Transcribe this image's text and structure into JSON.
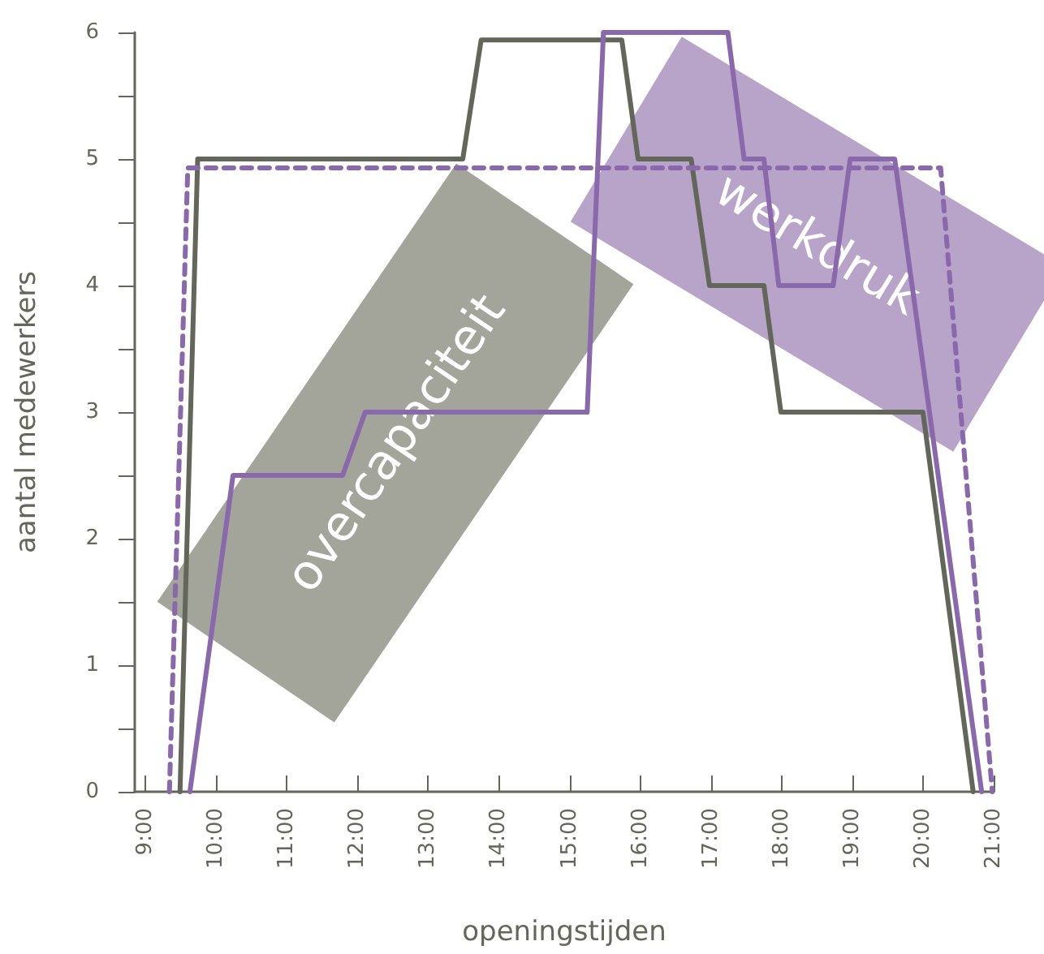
{
  "chart_data": {
    "type": "line",
    "xlabel": "openingstijden",
    "ylabel": "aantal medewerkers",
    "xlim": [
      8.85,
      21
    ],
    "ylim": [
      0,
      6
    ],
    "xticks": [
      {
        "value": 9,
        "label": "9:00"
      },
      {
        "value": 10,
        "label": "10:00"
      },
      {
        "value": 11,
        "label": "11:00"
      },
      {
        "value": 12,
        "label": "12:00"
      },
      {
        "value": 13,
        "label": "13:00"
      },
      {
        "value": 14,
        "label": "14:00"
      },
      {
        "value": 15,
        "label": "15:00"
      },
      {
        "value": 16,
        "label": "16:00"
      },
      {
        "value": 17,
        "label": "17:00"
      },
      {
        "value": 18,
        "label": "18:00"
      },
      {
        "value": 19,
        "label": "19:00"
      },
      {
        "value": 20,
        "label": "20:00"
      },
      {
        "value": 21,
        "label": "21:00"
      }
    ],
    "yticks": [
      0,
      {
        "value": 0.5,
        "label": null
      },
      1,
      {
        "value": 1.5,
        "label": null
      },
      2,
      {
        "value": 2.5,
        "label": null
      },
      3,
      {
        "value": 3.5,
        "label": null
      },
      4,
      {
        "value": 4.5,
        "label": null
      },
      5,
      {
        "value": 5.5,
        "label": null
      },
      6
    ],
    "grid": false,
    "marker": "none",
    "annotations": [
      "overcapaciteit",
      "werkdruk"
    ],
    "series": [
      {
        "color": "#63675a",
        "line_style": "solid",
        "x": [
          9.49,
          9.74,
          13.49,
          13.75,
          15.74,
          15.97,
          16.72,
          16.98,
          17.75,
          17.99,
          20.0,
          20.71
        ],
        "values": [
          0,
          5,
          5,
          5.94,
          5.94,
          5,
          5,
          4,
          4,
          3,
          3,
          0
        ]
      },
      {
        "color": "#8a68ac",
        "line_style": "solid",
        "x": [
          9.63,
          10.24,
          11.79,
          12.11,
          15.25,
          15.48,
          17.24,
          17.47,
          17.75,
          17.96,
          18.73,
          18.97,
          19.6,
          20.83
        ],
        "values": [
          0,
          2.5,
          2.5,
          3,
          3,
          6,
          6,
          5,
          5,
          4,
          4,
          5,
          5,
          0
        ]
      },
      {
        "color": "#8a68ac",
        "line_style": "dashed",
        "x": [
          9.34,
          9.6,
          20.25,
          20.98
        ],
        "values": [
          0,
          4.93,
          4.93,
          0
        ]
      }
    ]
  }
}
